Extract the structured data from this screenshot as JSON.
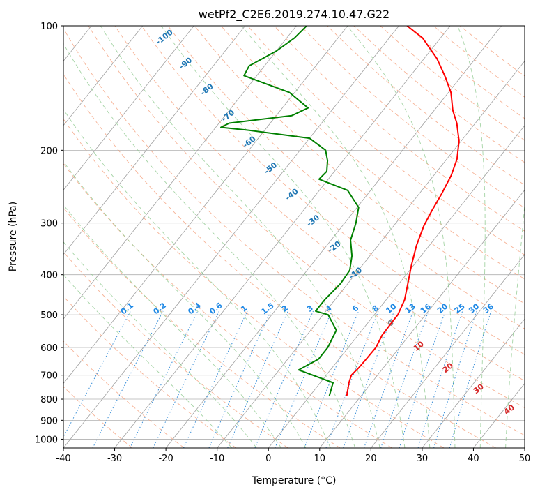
{
  "chart_data": {
    "type": "line",
    "title": "wetPf2_C2E6.2019.274.10.47.G22",
    "xlabel": "Temperature (°C)",
    "ylabel": "Pressure (hPa)",
    "xlim": [
      -40,
      50
    ],
    "ylim": [
      1050,
      100
    ],
    "y_scale": "log",
    "x_ticks": [
      -40,
      -30,
      -20,
      -10,
      0,
      10,
      20,
      30,
      40,
      50
    ],
    "y_ticks": [
      100,
      200,
      300,
      400,
      500,
      600,
      700,
      800,
      900,
      1000
    ],
    "grid": true,
    "colors": {
      "temperature": "#ff0000",
      "dewpoint": "#008000",
      "dry_adiabat": "#f4a582",
      "moist_adiabat": "#8fc98f",
      "mixing_ratio": "#3a8fd8",
      "label_blue": "#1f77b4",
      "label_mix": "#1e88e5",
      "label_red": "#d62728",
      "label_gray": "#808080"
    },
    "series": [
      {
        "key": "temperature",
        "points": [
          [
            7.2,
            785
          ],
          [
            5.6,
            730
          ],
          [
            4.9,
            700
          ],
          [
            5.2,
            670
          ],
          [
            5.3,
            640
          ],
          [
            5.4,
            600
          ],
          [
            4.7,
            560
          ],
          [
            4.6,
            520
          ],
          [
            4.6,
            500
          ],
          [
            3.6,
            460
          ],
          [
            1.7,
            420
          ],
          [
            -0.4,
            380
          ],
          [
            -2.5,
            340
          ],
          [
            -4.1,
            305
          ],
          [
            -4.9,
            280
          ],
          [
            -5.6,
            255
          ],
          [
            -6.6,
            230
          ],
          [
            -8.0,
            210
          ],
          [
            -10.4,
            190
          ],
          [
            -13.6,
            172
          ],
          [
            -16.4,
            160
          ],
          [
            -19.5,
            145
          ],
          [
            -23.0,
            133
          ],
          [
            -27.5,
            120
          ],
          [
            -33.5,
            107
          ],
          [
            -38.4,
            100
          ]
        ]
      },
      {
        "key": "dewpoint",
        "points": [
          [
            3.8,
            785
          ],
          [
            2.5,
            730
          ],
          [
            -6.2,
            680
          ],
          [
            -4.0,
            640
          ],
          [
            -4.0,
            600
          ],
          [
            -5.0,
            545
          ],
          [
            -9.0,
            500
          ],
          [
            -12.0,
            490
          ],
          [
            -12.0,
            460
          ],
          [
            -11.4,
            420
          ],
          [
            -11.7,
            390
          ],
          [
            -13.5,
            360
          ],
          [
            -16.2,
            330
          ],
          [
            -17.8,
            300
          ],
          [
            -19.7,
            275
          ],
          [
            -24.5,
            250
          ],
          [
            -31.8,
            235
          ],
          [
            -31.5,
            225
          ],
          [
            -33.0,
            212
          ],
          [
            -35.0,
            200
          ],
          [
            -40.0,
            187
          ],
          [
            -53.0,
            179
          ],
          [
            -59.0,
            176
          ],
          [
            -58.0,
            172
          ],
          [
            -47.0,
            165
          ],
          [
            -45.0,
            158
          ],
          [
            -51.0,
            145
          ],
          [
            -62.5,
            132
          ],
          [
            -63.0,
            125
          ],
          [
            -60.0,
            115
          ],
          [
            -58.5,
            107
          ],
          [
            -58.0,
            100
          ]
        ]
      }
    ],
    "dry_adiabat_labels": [
      "-100",
      "-90",
      "-80",
      "-70",
      "-60",
      "-50",
      "-40",
      "-30",
      "-20",
      "-10"
    ],
    "moist_adiabat_labels": [
      "0",
      "10",
      "20",
      "30",
      "40"
    ],
    "mixing_ratio_labels": [
      "0.1",
      "0.2",
      "0.4",
      "0.6",
      "1",
      "1.5",
      "2",
      "3",
      "4",
      "6",
      "8",
      "10",
      "13",
      "16",
      "20",
      "25",
      "30",
      "36"
    ]
  }
}
